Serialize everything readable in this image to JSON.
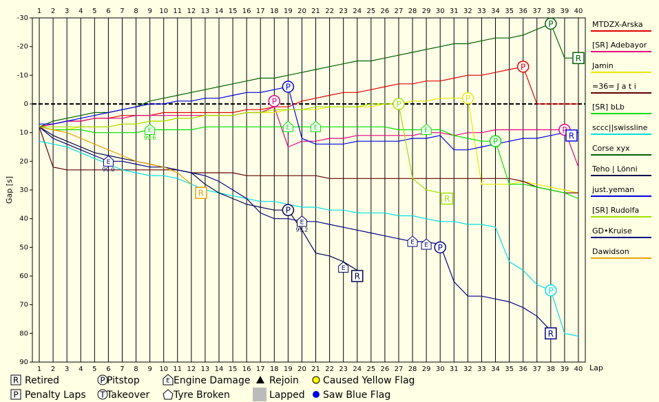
{
  "chart_data": {
    "type": "line",
    "y_label": "Gap [s]",
    "x_label": "Lap",
    "x": [
      1,
      2,
      3,
      4,
      5,
      6,
      7,
      8,
      9,
      10,
      11,
      12,
      13,
      14,
      15,
      16,
      17,
      18,
      19,
      20,
      21,
      22,
      23,
      24,
      25,
      26,
      27,
      28,
      29,
      30,
      31,
      32,
      33,
      34,
      35,
      36,
      37,
      38,
      39,
      40
    ],
    "xlim": [
      0.5,
      40.5
    ],
    "xticks": [
      1,
      2,
      3,
      4,
      5,
      6,
      7,
      8,
      9,
      10,
      11,
      12,
      13,
      14,
      15,
      16,
      17,
      18,
      19,
      20,
      21,
      22,
      23,
      24,
      25,
      26,
      27,
      28,
      29,
      30,
      31,
      32,
      33,
      34,
      35,
      36,
      37,
      38,
      39,
      40
    ],
    "ylim": [
      -30,
      90
    ],
    "y_inverted": true,
    "yticks": [
      -30,
      -20,
      -10,
      0,
      10,
      20,
      30,
      40,
      50,
      60,
      70,
      80,
      90
    ],
    "series": [
      {
        "name": "MTDZX-Arska",
        "color": "#e00000",
        "values": [
          8,
          7,
          6,
          6,
          5,
          5,
          4,
          4,
          4,
          3,
          3,
          3,
          3,
          3,
          3,
          2,
          2,
          1,
          1,
          -1,
          -2,
          -3,
          -4,
          -4,
          -5,
          -6,
          -7,
          -7,
          -8,
          -8,
          -9,
          -10,
          -10,
          -11,
          -12,
          -13,
          0,
          0,
          0,
          0
        ]
      },
      {
        "name": "[SR] Adebayor",
        "color": "#e0007f",
        "values": [
          8,
          7,
          6,
          6,
          5,
          5,
          5,
          4,
          4,
          4,
          4,
          4,
          4,
          4,
          4,
          3,
          3,
          1,
          15,
          13,
          13,
          12,
          12,
          11,
          11,
          11,
          11,
          11,
          10,
          10,
          11,
          10,
          10,
          9,
          9,
          9,
          9,
          9,
          9,
          22
        ]
      },
      {
        "name": "Jamin",
        "color": "#e8e800",
        "values": [
          8,
          9,
          9,
          8,
          8,
          8,
          7,
          7,
          6,
          6,
          5,
          5,
          4,
          4,
          4,
          3,
          3,
          3,
          2,
          2,
          2,
          1,
          1,
          1,
          1,
          0,
          0,
          -1,
          -1,
          -2,
          -2,
          -2,
          28,
          28,
          28,
          27,
          28,
          29,
          30,
          31
        ]
      },
      {
        "name": "=36= J a t i",
        "color": "#600000",
        "values": [
          8,
          22,
          23,
          23,
          23,
          23,
          23,
          23,
          23,
          23,
          23,
          24,
          24,
          24,
          24,
          25,
          25,
          25,
          25,
          25,
          25,
          26,
          26,
          26,
          26,
          26,
          26,
          26,
          26,
          26,
          26,
          26,
          26,
          26,
          26,
          27,
          29,
          30,
          31,
          31
        ]
      },
      {
        "name": "[SR] bLb",
        "color": "#00e000",
        "values": [
          8,
          9,
          9,
          9,
          10,
          10,
          10,
          10,
          9,
          9,
          9,
          9,
          8,
          8,
          8,
          8,
          8,
          8,
          8,
          8,
          8,
          8,
          8,
          8,
          8,
          8,
          9,
          9,
          9,
          9,
          11,
          12,
          13,
          13,
          28,
          28,
          29,
          30,
          31,
          33
        ]
      },
      {
        "name": "sccc||swissline",
        "color": "#00e0e0",
        "values": [
          13,
          14,
          15,
          17,
          19,
          21,
          23,
          24,
          25,
          25,
          26,
          28,
          30,
          31,
          32,
          33,
          34,
          34,
          35,
          36,
          36,
          37,
          37,
          38,
          38,
          38,
          39,
          39,
          40,
          41,
          41,
          42,
          42,
          43,
          55,
          58,
          63,
          65,
          80,
          81
        ]
      },
      {
        "name": "Corse xyx",
        "color": "#006000",
        "values": [
          8,
          6,
          5,
          4,
          3,
          3,
          2,
          1,
          -1,
          -2,
          -3,
          -4,
          -5,
          -6,
          -7,
          -8,
          -9,
          -9,
          -10,
          -11,
          -12,
          -13,
          -14,
          -15,
          -15,
          -16,
          -17,
          -18,
          -19,
          -20,
          -21,
          -21,
          -22,
          -23,
          -23,
          -24,
          -26,
          -28,
          -16,
          -16
        ]
      },
      {
        "name": "Teho | Lönni",
        "color": "#000050",
        "values": [
          8,
          11,
          13,
          15,
          17,
          18,
          19,
          20,
          21,
          22,
          23,
          24,
          28,
          31,
          33,
          35,
          36,
          37,
          37,
          44,
          52,
          53,
          55,
          58,
          null,
          null,
          null,
          null,
          null,
          null,
          null,
          null,
          null,
          null,
          null,
          null,
          null,
          null,
          null,
          null
        ]
      },
      {
        "name": "just.yeman",
        "color": "#0000e0",
        "values": [
          7,
          7,
          6,
          5,
          4,
          3,
          2,
          1,
          0,
          0,
          -1,
          -1,
          -2,
          -2,
          -3,
          -4,
          -4,
          -5,
          -6,
          12,
          14,
          14,
          14,
          13,
          13,
          13,
          13,
          12,
          12,
          11,
          16,
          16,
          15,
          14,
          13,
          12,
          12,
          11,
          10,
          10
        ]
      },
      {
        "name": "[SR] Rudolfa",
        "color": "#a0e000",
        "values": [
          8,
          8,
          8,
          8,
          8,
          8,
          7,
          7,
          6,
          6,
          5,
          5,
          4,
          4,
          4,
          3,
          3,
          2,
          2,
          2,
          1,
          1,
          1,
          1,
          0,
          0,
          0,
          26,
          30,
          31,
          null,
          null,
          null,
          null,
          null,
          null,
          null,
          null,
          null,
          null
        ]
      },
      {
        "name": "GD•Kruise",
        "color": "#000080",
        "values": [
          8,
          12,
          14,
          16,
          18,
          20,
          20,
          21,
          22,
          22,
          23,
          24,
          25,
          27,
          30,
          33,
          38,
          40,
          40,
          41,
          41,
          42,
          43,
          44,
          45,
          46,
          47,
          48,
          48,
          49,
          62,
          67,
          67,
          68,
          69,
          71,
          74,
          79,
          null,
          null
        ]
      },
      {
        "name": "Dawidson",
        "color": "#e8a000",
        "values": [
          8,
          9,
          10,
          12,
          14,
          16,
          18,
          20,
          21,
          22,
          24,
          28,
          null,
          null,
          null,
          null,
          null,
          null,
          null,
          null,
          null,
          null,
          null,
          null,
          null,
          null,
          null,
          null,
          null,
          null,
          null,
          null,
          null,
          null,
          null,
          null,
          null,
          null,
          null,
          null
        ]
      }
    ],
    "events": [
      {
        "series": 6,
        "lap": 38,
        "gap": -28,
        "kind": "P"
      },
      {
        "series": 6,
        "lap": 40,
        "gap": -16,
        "kind": "R"
      },
      {
        "series": 0,
        "lap": 36,
        "gap": -13,
        "kind": "P"
      },
      {
        "series": 8,
        "lap": 19,
        "gap": -6,
        "kind": "P"
      },
      {
        "series": 1,
        "lap": 18,
        "gap": -1,
        "kind": "P"
      },
      {
        "series": 9,
        "lap": 27,
        "gap": 0,
        "kind": "P"
      },
      {
        "series": 2,
        "lap": 32,
        "gap": -2,
        "kind": "P"
      },
      {
        "series": 4,
        "lap": 9,
        "gap": 9,
        "kind": "E",
        "label": "99.6"
      },
      {
        "series": 4,
        "lap": 19,
        "gap": 8,
        "kind": "E"
      },
      {
        "series": 4,
        "lap": 21,
        "gap": 8,
        "kind": "E"
      },
      {
        "series": 4,
        "lap": 29,
        "gap": 9,
        "kind": "E"
      },
      {
        "series": 4,
        "lap": 34,
        "gap": 13,
        "kind": "P"
      },
      {
        "series": 1,
        "lap": 39,
        "gap": 9,
        "kind": "P"
      },
      {
        "series": 8,
        "lap": 39.5,
        "gap": 11,
        "kind": "R"
      },
      {
        "series": 10,
        "lap": 6,
        "gap": 20,
        "kind": "E",
        "label": "99.0"
      },
      {
        "series": 11,
        "lap": 12.7,
        "gap": 31,
        "kind": "R"
      },
      {
        "series": 9,
        "lap": 30.5,
        "gap": 33,
        "kind": "R"
      },
      {
        "series": 7,
        "lap": 19,
        "gap": 37,
        "kind": "P"
      },
      {
        "series": 7,
        "lap": 20,
        "gap": 41,
        "kind": "E",
        "label": "99.2"
      },
      {
        "series": 7,
        "lap": 23,
        "gap": 57,
        "kind": "E"
      },
      {
        "series": 7,
        "lap": 24,
        "gap": 60,
        "kind": "R"
      },
      {
        "series": 10,
        "lap": 28,
        "gap": 48,
        "kind": "E"
      },
      {
        "series": 10,
        "lap": 29,
        "gap": 49,
        "kind": "E"
      },
      {
        "series": 10,
        "lap": 30,
        "gap": 50,
        "kind": "P"
      },
      {
        "series": 5,
        "lap": 38,
        "gap": 65,
        "kind": "P"
      },
      {
        "series": 10,
        "lap": 38,
        "gap": 80,
        "kind": "R"
      }
    ],
    "key": [
      {
        "symbol": "R",
        "label": "Retired"
      },
      {
        "symbol": "P",
        "label": "Penalty Laps"
      },
      {
        "symbol": "P",
        "label": "Pitstop"
      },
      {
        "symbol": "T",
        "label": "Takeover"
      },
      {
        "symbol": "E",
        "label": "Engine Damage"
      },
      {
        "label": "Tyre Broken"
      },
      {
        "label": "Rejoin"
      },
      {
        "label": "Lapped"
      },
      {
        "label": "Caused Yellow Flag"
      },
      {
        "label": "Saw Blue Flag"
      }
    ]
  }
}
